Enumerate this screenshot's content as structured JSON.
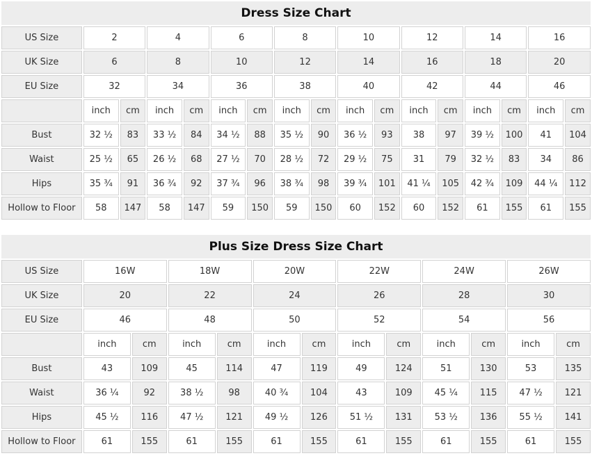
{
  "colors": {
    "cell_shaded": "#ededed",
    "cell_plain": "#ffffff",
    "border": "#d2d2d2",
    "text": "#333333",
    "title_text": "#111111"
  },
  "chart_data": [
    {
      "type": "table",
      "title": "Dress Size Chart",
      "units": {
        "inch": "inch",
        "cm": "cm"
      },
      "size_rows": [
        {
          "label": "US Size",
          "values": [
            "2",
            "4",
            "6",
            "8",
            "10",
            "12",
            "14",
            "16"
          ]
        },
        {
          "label": "UK Size",
          "values": [
            "6",
            "8",
            "10",
            "12",
            "14",
            "16",
            "18",
            "20"
          ]
        },
        {
          "label": "EU Size",
          "values": [
            "32",
            "34",
            "36",
            "38",
            "40",
            "42",
            "44",
            "46"
          ]
        }
      ],
      "measurement_rows": [
        {
          "label": "Bust",
          "inch": [
            "32 ½",
            "33 ½",
            "34 ½",
            "35 ½",
            "36 ½",
            "38",
            "39 ½",
            "41"
          ],
          "cm": [
            "83",
            "84",
            "88",
            "90",
            "93",
            "97",
            "100",
            "104"
          ]
        },
        {
          "label": "Waist",
          "inch": [
            "25 ½",
            "26 ½",
            "27 ½",
            "28 ½",
            "29 ½",
            "31",
            "32 ½",
            "34"
          ],
          "cm": [
            "65",
            "68",
            "70",
            "72",
            "75",
            "79",
            "83",
            "86"
          ]
        },
        {
          "label": "Hips",
          "inch": [
            "35 ¾",
            "36 ¾",
            "37 ¾",
            "38 ¾",
            "39 ¾",
            "41 ¼",
            "42 ¾",
            "44 ¼"
          ],
          "cm": [
            "91",
            "92",
            "96",
            "98",
            "101",
            "105",
            "109",
            "112"
          ]
        },
        {
          "label": "Hollow to Floor",
          "inch": [
            "58",
            "58",
            "59",
            "59",
            "60",
            "60",
            "61",
            "61"
          ],
          "cm": [
            "147",
            "147",
            "150",
            "150",
            "152",
            "152",
            "155",
            "155"
          ]
        }
      ]
    },
    {
      "type": "table",
      "title": "Plus Size Dress Size Chart",
      "units": {
        "inch": "inch",
        "cm": "cm"
      },
      "size_rows": [
        {
          "label": "US Size",
          "values": [
            "16W",
            "18W",
            "20W",
            "22W",
            "24W",
            "26W"
          ]
        },
        {
          "label": "UK Size",
          "values": [
            "20",
            "22",
            "24",
            "26",
            "28",
            "30"
          ]
        },
        {
          "label": "EU Size",
          "values": [
            "46",
            "48",
            "50",
            "52",
            "54",
            "56"
          ]
        }
      ],
      "measurement_rows": [
        {
          "label": "Bust",
          "inch": [
            "43",
            "45",
            "47",
            "49",
            "51",
            "53"
          ],
          "cm": [
            "109",
            "114",
            "119",
            "124",
            "130",
            "135"
          ]
        },
        {
          "label": "Waist",
          "inch": [
            "36 ¼",
            "38 ½",
            "40 ¾",
            "43",
            "45 ¼",
            "47 ½"
          ],
          "cm": [
            "92",
            "98",
            "104",
            "109",
            "115",
            "121"
          ]
        },
        {
          "label": "Hips",
          "inch": [
            "45 ½",
            "47 ½",
            "49 ½",
            "51 ½",
            "53 ½",
            "55 ½"
          ],
          "cm": [
            "116",
            "121",
            "126",
            "131",
            "136",
            "141"
          ]
        },
        {
          "label": "Hollow to Floor",
          "inch": [
            "61",
            "61",
            "61",
            "61",
            "61",
            "61"
          ],
          "cm": [
            "155",
            "155",
            "155",
            "155",
            "155",
            "155"
          ]
        }
      ]
    }
  ]
}
